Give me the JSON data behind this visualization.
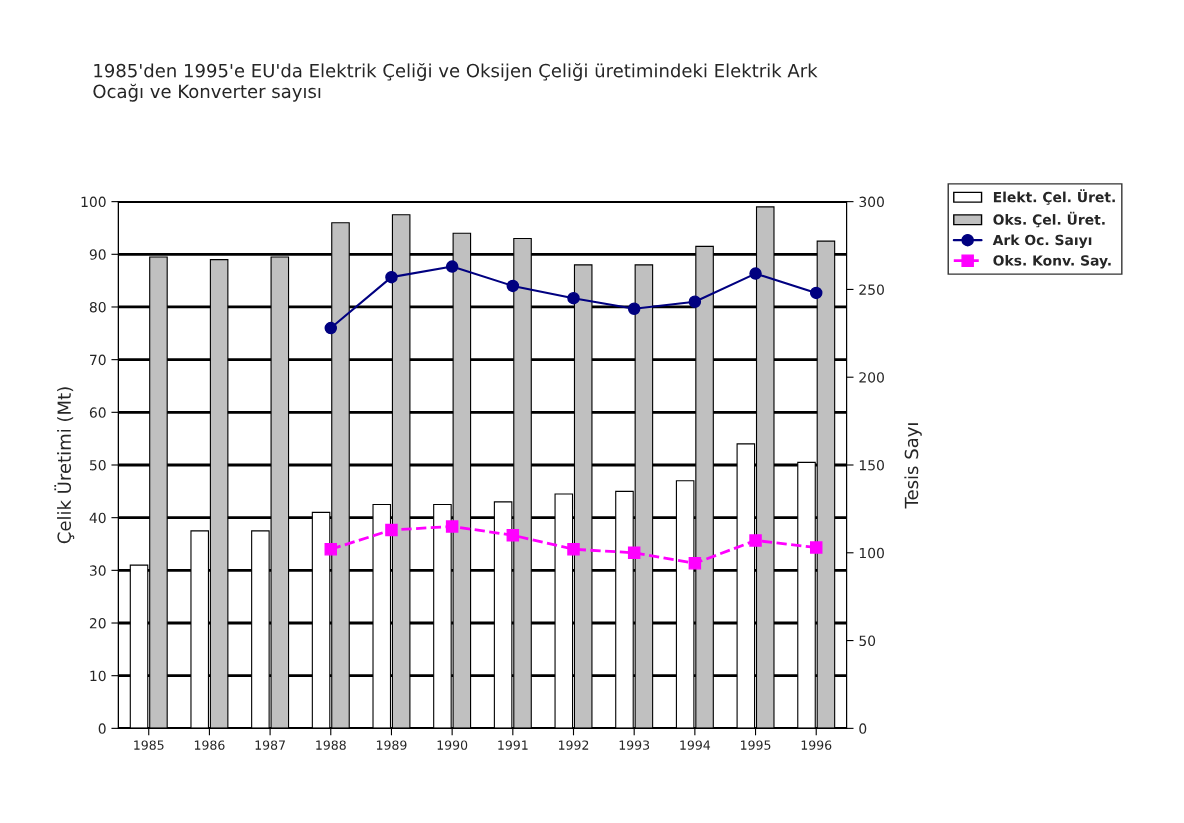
{
  "chart_data": {
    "type": "bar",
    "title": "1985'den 1995'e EU'da Elektrik Çeliği ve Oksijen Çeliği üretimindeki Elektrik Ark\nOcağı ve Konverter sayısı",
    "ylabel": "Çelik Üretimi (Mt)",
    "y2label": "Tesis Sayı",
    "categories": [
      "1985",
      "1986",
      "1987",
      "1988",
      "1989",
      "1990",
      "1991",
      "1992",
      "1993",
      "1994",
      "1995",
      "1996"
    ],
    "series": [
      {
        "name": "Elekt. Çel. Üret.",
        "color": "#ffffff",
        "values": [
          31,
          37.5,
          37.5,
          41,
          42.5,
          42.5,
          43,
          44.5,
          45,
          47,
          54,
          50.5
        ]
      },
      {
        "name": "Oks. Çel. Üret.",
        "color": "#c0c0c0",
        "values": [
          89.5,
          89,
          89.5,
          96,
          97.5,
          94,
          93,
          88,
          88,
          91.5,
          99,
          92.5
        ]
      },
      {
        "name": "Ark Oc. Saıyı",
        "type": "line",
        "axis": "y2",
        "color": "#000080",
        "marker": "circle",
        "line_style": "solid",
        "values": [
          null,
          null,
          null,
          228,
          257,
          263,
          252,
          245,
          239,
          243,
          259,
          248
        ]
      },
      {
        "name": "Oks. Konv. Say.",
        "type": "line",
        "axis": "y2",
        "color": "#ff00ff",
        "marker": "square",
        "line_style": "dashed",
        "values": [
          null,
          null,
          null,
          102,
          113,
          115,
          110,
          102,
          100,
          94,
          107,
          103
        ]
      }
    ],
    "ylim": [
      0,
      100
    ],
    "yticks": [
      0,
      10,
      20,
      30,
      40,
      50,
      60,
      70,
      80,
      90,
      100
    ],
    "y2lim": [
      0,
      300
    ],
    "y2ticks": [
      0,
      50,
      100,
      150,
      200,
      250,
      300
    ],
    "grid": "y",
    "legend": "top right"
  }
}
